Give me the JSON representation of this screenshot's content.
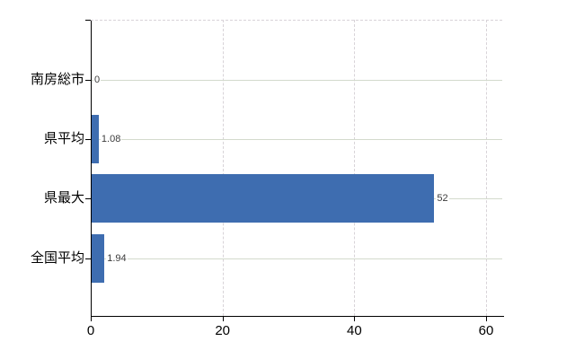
{
  "chart_data": {
    "type": "bar",
    "orientation": "horizontal",
    "title": "",
    "xlabel": "",
    "ylabel": "",
    "categories": [
      "南房総市",
      "県平均",
      "県最大",
      "全国平均"
    ],
    "values": [
      0,
      1.08,
      52,
      1.94
    ],
    "value_labels": [
      "0",
      "1.08",
      "52",
      "1.94"
    ],
    "x_ticks": [
      0,
      20,
      40,
      60
    ],
    "x_tick_labels": [
      "0",
      "20",
      "40",
      "60"
    ],
    "xlim": [
      0,
      62.5
    ],
    "grid": {
      "horizontal": "solid",
      "vertical": "dashed",
      "top_border": "dashed"
    },
    "legend": null,
    "colors": {
      "bar": "#3e6db0",
      "horizontal_grid": "#d3dacd",
      "vertical_grid": "#d8d3d8",
      "axis": "#000000",
      "category_text": "#000000",
      "tick_text": "#000000",
      "value_text": "#3d3d3d",
      "background": "#ffffff"
    }
  }
}
